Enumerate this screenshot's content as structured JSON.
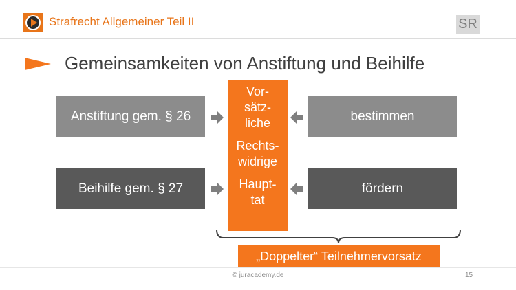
{
  "header": {
    "title": "Strafrecht Allgemeiner Teil II",
    "badge": "SR",
    "logo_icon": "play-icon",
    "accent_color": "#e8751a"
  },
  "slide": {
    "title": "Gemeinsamkeiten von Anstiftung und Beihilfe"
  },
  "diagram": {
    "left_boxes": [
      "Anstiftung gem. § 26",
      "Beihilfe gem. § 27"
    ],
    "right_boxes": [
      "bestimmen",
      "fördern"
    ],
    "center_lines": [
      "Vor-",
      "sätz-",
      "liche",
      "Rechts-",
      "widrige",
      "Haupt-",
      "tat"
    ],
    "bottom_label": "„Doppelter“ Teilnehmervorsatz",
    "colors": {
      "orange": "#f4761d",
      "gray_light": "#8c8c8c",
      "gray_dark": "#595959",
      "arrow": "#7f7f7f"
    }
  },
  "footer": {
    "copyright": "© juracademy.de",
    "page": "15"
  }
}
